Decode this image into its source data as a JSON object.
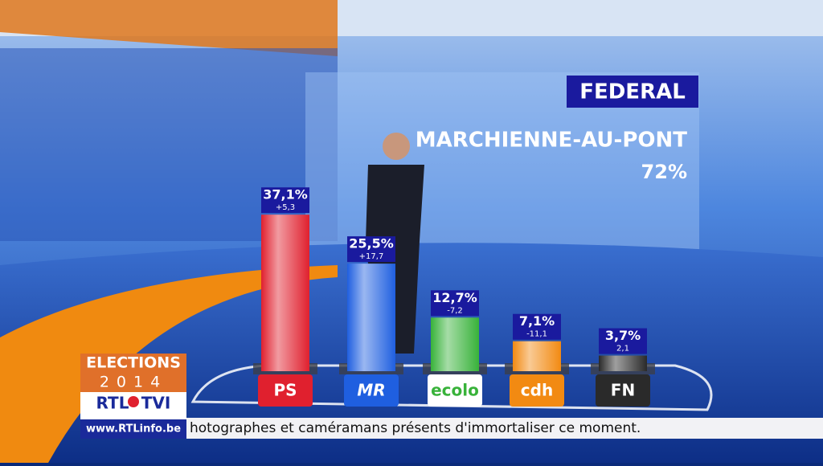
{
  "header": {
    "level": "FEDERAL",
    "commune": "MARCHIENNE-AU-PONT",
    "counted": "72%"
  },
  "chart_data": {
    "type": "bar",
    "categories": [
      "PS",
      "MR",
      "ecolo",
      "cdh",
      "FN"
    ],
    "values": [
      37.1,
      25.5,
      12.7,
      7.1,
      3.7
    ],
    "value_labels": [
      "37,1%",
      "25,5%",
      "12,7%",
      "7,1%",
      "3,7%"
    ],
    "change_labels": [
      "+5,3",
      "+17,7",
      "-7,2",
      "-11,1",
      "2,1"
    ],
    "colors": [
      "#e0202e",
      "#1f5fe0",
      "#38b23a",
      "#f28a12",
      "#2a2a2a"
    ]
  },
  "logo": {
    "line1": "ELECTIONS",
    "line2": "2014",
    "brand_left": "RTL",
    "brand_right": "TVI",
    "url": "www.RTLinfo.be"
  },
  "ticker": "hotographes et caméramans présents d'immortaliser ce moment."
}
